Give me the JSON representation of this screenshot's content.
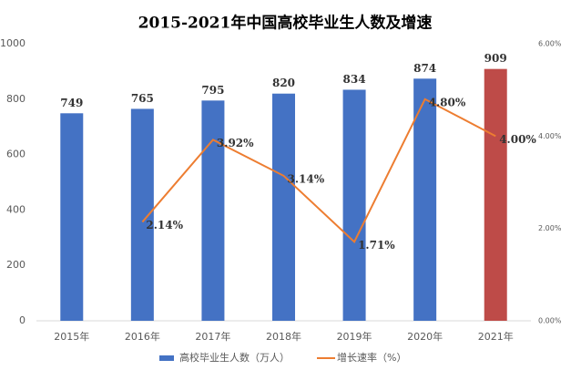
{
  "chart_data": {
    "type": "bar-line",
    "title": "2015-2021年中国高校毕业生人数及增速",
    "categories": [
      "2015年",
      "2016年",
      "2017年",
      "2018年",
      "2019年",
      "2020年",
      "2021年"
    ],
    "series": [
      {
        "name": "高校毕业生人数（万人）",
        "type": "bar",
        "color": "#4472c4",
        "colors": [
          "#4472c4",
          "#4472c4",
          "#4472c4",
          "#4472c4",
          "#4472c4",
          "#4472c4",
          "#be4b48"
        ],
        "values": [
          749,
          765,
          795,
          820,
          834,
          874,
          909
        ]
      },
      {
        "name": "增长速率（%）",
        "type": "line",
        "color": "#ed7d31",
        "axis": "y2",
        "values": [
          null,
          2.14,
          3.92,
          3.14,
          1.71,
          4.8,
          4.0
        ],
        "value_labels": [
          null,
          "2.14%",
          "3.92%",
          "3.14%",
          "1.71%",
          "4.80%",
          "4.00%"
        ]
      }
    ],
    "ylim": [
      0,
      1000
    ],
    "yticks": [
      0,
      200,
      400,
      600,
      800,
      1000
    ],
    "y2lim": [
      0,
      6
    ],
    "y2ticks": [
      {
        "value": 0,
        "label": "0.00%"
      },
      {
        "value": 2,
        "label": "2.00%"
      },
      {
        "value": 4,
        "label": "4.00%"
      },
      {
        "value": 6,
        "label": "6.00%"
      }
    ],
    "legend": "bottom"
  }
}
